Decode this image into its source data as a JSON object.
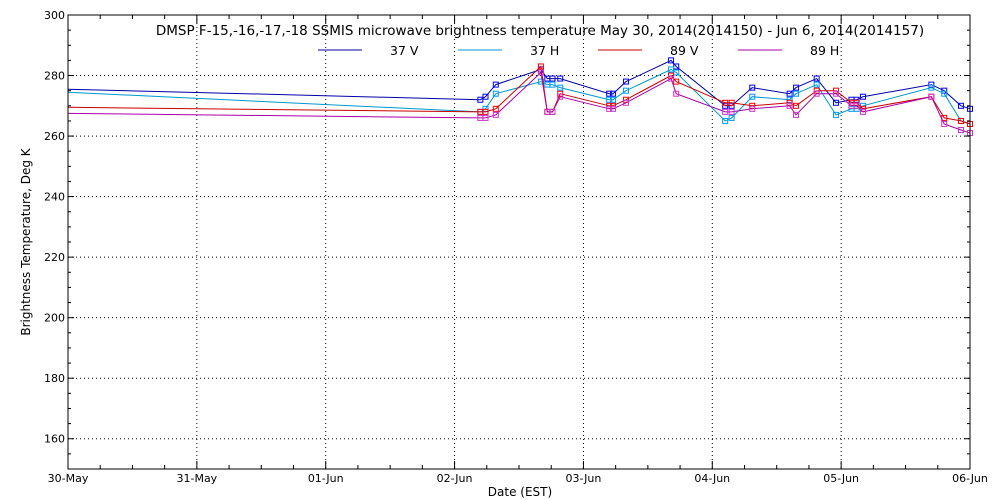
{
  "chart_data": {
    "type": "line",
    "title": "DMSP F-15,-16,-17,-18 SSMIS microwave brightness temperature May 30, 2014(2014150) - Jun  6, 2014(2014157)",
    "xlabel": "Date (EST)",
    "ylabel": "Brightness Temperature, Deg K",
    "xlim": [
      0,
      7
    ],
    "ylim": [
      150,
      300
    ],
    "x_ticks": [
      {
        "value": 0,
        "label": "30-May"
      },
      {
        "value": 1,
        "label": "31-May"
      },
      {
        "value": 2,
        "label": "01-Jun"
      },
      {
        "value": 3,
        "label": "02-Jun"
      },
      {
        "value": 4,
        "label": "03-Jun"
      },
      {
        "value": 5,
        "label": "04-Jun"
      },
      {
        "value": 6,
        "label": "05-Jun"
      },
      {
        "value": 7,
        "label": "06-Jun"
      }
    ],
    "y_ticks": [
      {
        "value": 160,
        "label": "160"
      },
      {
        "value": 180,
        "label": "180"
      },
      {
        "value": 200,
        "label": "200"
      },
      {
        "value": 220,
        "label": "220"
      },
      {
        "value": 240,
        "label": "240"
      },
      {
        "value": 260,
        "label": "260"
      },
      {
        "value": 280,
        "label": "280"
      },
      {
        "value": 300,
        "label": "300"
      }
    ],
    "grid": true,
    "legend_position": "top",
    "series": [
      {
        "name": "37 V",
        "color": "#0000aa",
        "marker_color": "#0000ff",
        "x": [
          0,
          3.2,
          3.24,
          3.32,
          3.67,
          3.72,
          3.76,
          3.82,
          4.2,
          4.23,
          4.33,
          4.68,
          4.72,
          5.1,
          5.15,
          5.31,
          5.6,
          5.65,
          5.81,
          5.96,
          6.08,
          6.12,
          6.17,
          6.7,
          6.8,
          6.93,
          7.0
        ],
        "y": [
          275.5,
          272,
          273,
          277,
          282,
          279,
          279,
          279,
          274,
          274,
          278,
          285,
          283,
          270,
          270,
          276,
          274,
          276,
          279,
          271,
          272,
          272,
          273,
          277,
          275,
          270,
          269
        ]
      },
      {
        "name": "37 H",
        "color": "#0099cc",
        "marker_color": "#0099ff",
        "x": [
          0,
          3.2,
          3.24,
          3.32,
          3.67,
          3.72,
          3.76,
          3.82,
          4.2,
          4.23,
          4.33,
          4.68,
          4.72,
          5.1,
          5.15,
          5.31,
          5.6,
          5.65,
          5.81,
          5.96,
          6.08,
          6.12,
          6.17,
          6.7,
          6.8,
          6.93,
          7.0
        ],
        "y": [
          274.5,
          268,
          269,
          274,
          278,
          277,
          277,
          276,
          272,
          272,
          275,
          282,
          281,
          265,
          266,
          273,
          272,
          274,
          277,
          267,
          269,
          269,
          270,
          276,
          274,
          265,
          264
        ]
      },
      {
        "name": "89 V",
        "color": "#cc0000",
        "marker_color": "#ff0000",
        "x": [
          0,
          3.2,
          3.24,
          3.32,
          3.67,
          3.72,
          3.76,
          3.82,
          4.2,
          4.23,
          4.33,
          4.68,
          4.72,
          5.1,
          5.15,
          5.31,
          5.6,
          5.65,
          5.81,
          5.96,
          6.08,
          6.12,
          6.17,
          6.7,
          6.8,
          6.93,
          7.0
        ],
        "y": [
          269.5,
          268,
          268,
          269,
          283,
          268,
          268,
          274,
          270,
          270,
          272,
          280,
          278,
          271,
          271,
          270,
          271,
          270,
          275,
          275,
          271,
          271,
          269,
          273,
          266,
          265,
          264
        ]
      },
      {
        "name": "89 H",
        "color": "#aa00aa",
        "marker_color": "#cc33cc",
        "x": [
          0,
          3.2,
          3.24,
          3.32,
          3.67,
          3.72,
          3.76,
          3.82,
          4.2,
          4.23,
          4.33,
          4.68,
          4.72,
          5.1,
          5.15,
          5.31,
          5.6,
          5.65,
          5.81,
          5.96,
          6.08,
          6.12,
          6.17,
          6.7,
          6.8,
          6.93,
          7.0
        ],
        "y": [
          267.5,
          266,
          266,
          267,
          281,
          268,
          268,
          273,
          269,
          269,
          271,
          279,
          274,
          268,
          268,
          269,
          270,
          267,
          274,
          274,
          270,
          270,
          268,
          273,
          264,
          262,
          261
        ]
      }
    ]
  }
}
